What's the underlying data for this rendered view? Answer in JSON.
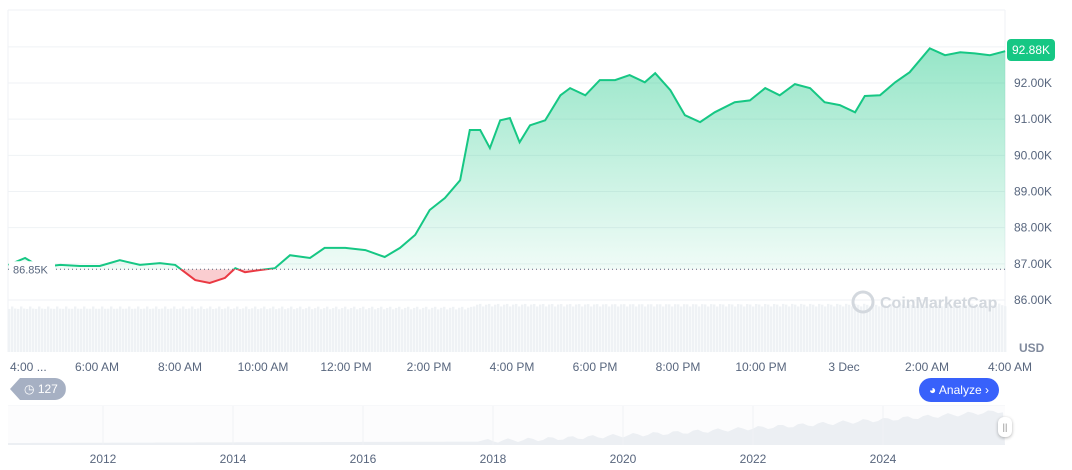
{
  "chart_data": {
    "type": "area",
    "currency": "USD",
    "current_price_label": "92.88K",
    "baseline_label": "86.85K",
    "baseline": 86.85,
    "ylim": [
      86.0,
      93.3
    ],
    "y_ticks": [
      "86.00K",
      "87.00K",
      "88.00K",
      "89.00K",
      "90.00K",
      "91.00K",
      "92.00K"
    ],
    "y_tick_values": [
      86,
      87,
      88,
      89,
      90,
      91,
      92
    ],
    "x_ticks": [
      "4:00 ...",
      "6:00 AM",
      "8:00 AM",
      "10:00 AM",
      "12:00 PM",
      "2:00 PM",
      "4:00 PM",
      "6:00 PM",
      "8:00 PM",
      "10:00 PM",
      "3 Dec",
      "2:00 AM",
      "4:00 AM"
    ],
    "x_tick_times": [
      "2 Dec 04:00",
      "2 Dec 06:00",
      "2 Dec 08:00",
      "2 Dec 10:00",
      "2 Dec 12:00",
      "2 Dec 14:00",
      "2 Dec 16:00",
      "2 Dec 18:00",
      "2 Dec 20:00",
      "2 Dec 22:00",
      "3 Dec 00:00",
      "3 Dec 02:00",
      "3 Dec 04:00"
    ],
    "up_color": "#16c784",
    "down_color": "#ea3943",
    "grid": true,
    "x": [
      "2 Dec 03:52",
      "2 Dec 04:16",
      "2 Dec 04:38",
      "2 Dec 05:07",
      "2 Dec 05:35",
      "2 Dec 06:04",
      "2 Dec 06:33",
      "2 Dec 07:02",
      "2 Dec 07:31",
      "2 Dec 07:53",
      "2 Dec 08:07",
      "2 Dec 08:22",
      "2 Dec 08:43",
      "2 Dec 09:05",
      "2 Dec 09:20",
      "2 Dec 09:34",
      "2 Dec 09:56",
      "2 Dec 10:17",
      "2 Dec 10:39",
      "2 Dec 11:08",
      "2 Dec 11:29",
      "2 Dec 11:59",
      "2 Dec 12:28",
      "2 Dec 12:56",
      "2 Dec 13:18",
      "2 Dec 13:40",
      "2 Dec 14:01",
      "2 Dec 14:23",
      "2 Dec 14:45",
      "2 Dec 14:59",
      "2 Dec 15:14",
      "2 Dec 15:28",
      "2 Dec 15:43",
      "2 Dec 15:57",
      "2 Dec 16:11",
      "2 Dec 16:26",
      "2 Dec 16:48",
      "2 Dec 17:10",
      "2 Dec 17:24",
      "2 Dec 17:46",
      "2 Dec 18:07",
      "2 Dec 18:29",
      "2 Dec 18:50",
      "2 Dec 19:12",
      "2 Dec 19:27",
      "2 Dec 19:49",
      "2 Dec 20:10",
      "2 Dec 20:32",
      "2 Dec 20:53",
      "2 Dec 21:22",
      "2 Dec 21:44",
      "2 Dec 22:06",
      "2 Dec 22:27",
      "2 Dec 22:49",
      "2 Dec 23:11",
      "2 Dec 23:32",
      "2 Dec 23:54",
      "3 Dec 00:16",
      "3 Dec 00:30",
      "3 Dec 00:52",
      "3 Dec 01:14",
      "3 Dec 01:35",
      "3 Dec 02:04",
      "3 Dec 02:26",
      "3 Dec 02:48",
      "3 Dec 03:09",
      "3 Dec 03:31",
      "3 Dec 03:53"
    ],
    "y": [
      86.97,
      87.16,
      86.91,
      86.97,
      86.94,
      86.94,
      87.1,
      86.97,
      87.02,
      86.97,
      86.77,
      86.55,
      86.47,
      86.61,
      86.88,
      86.77,
      86.83,
      86.88,
      87.24,
      87.16,
      87.44,
      87.44,
      87.38,
      87.19,
      87.44,
      87.8,
      88.49,
      88.82,
      89.31,
      90.7,
      90.7,
      90.2,
      90.97,
      91.03,
      90.36,
      90.83,
      90.97,
      91.66,
      91.86,
      91.66,
      92.08,
      92.08,
      92.22,
      92.02,
      92.27,
      91.8,
      91.11,
      90.92,
      91.19,
      91.47,
      91.52,
      91.86,
      91.66,
      91.97,
      91.86,
      91.47,
      91.39,
      91.19,
      91.64,
      91.66,
      92.02,
      92.3,
      92.96,
      92.77,
      92.85,
      92.82,
      92.77,
      92.88
    ]
  },
  "navigator": {
    "years": [
      "2012",
      "2014",
      "2016",
      "2018",
      "2020",
      "2022",
      "2024"
    ]
  },
  "watermark": "CoinMarketCap",
  "history_count": "127",
  "analyze_label": "Analyze"
}
